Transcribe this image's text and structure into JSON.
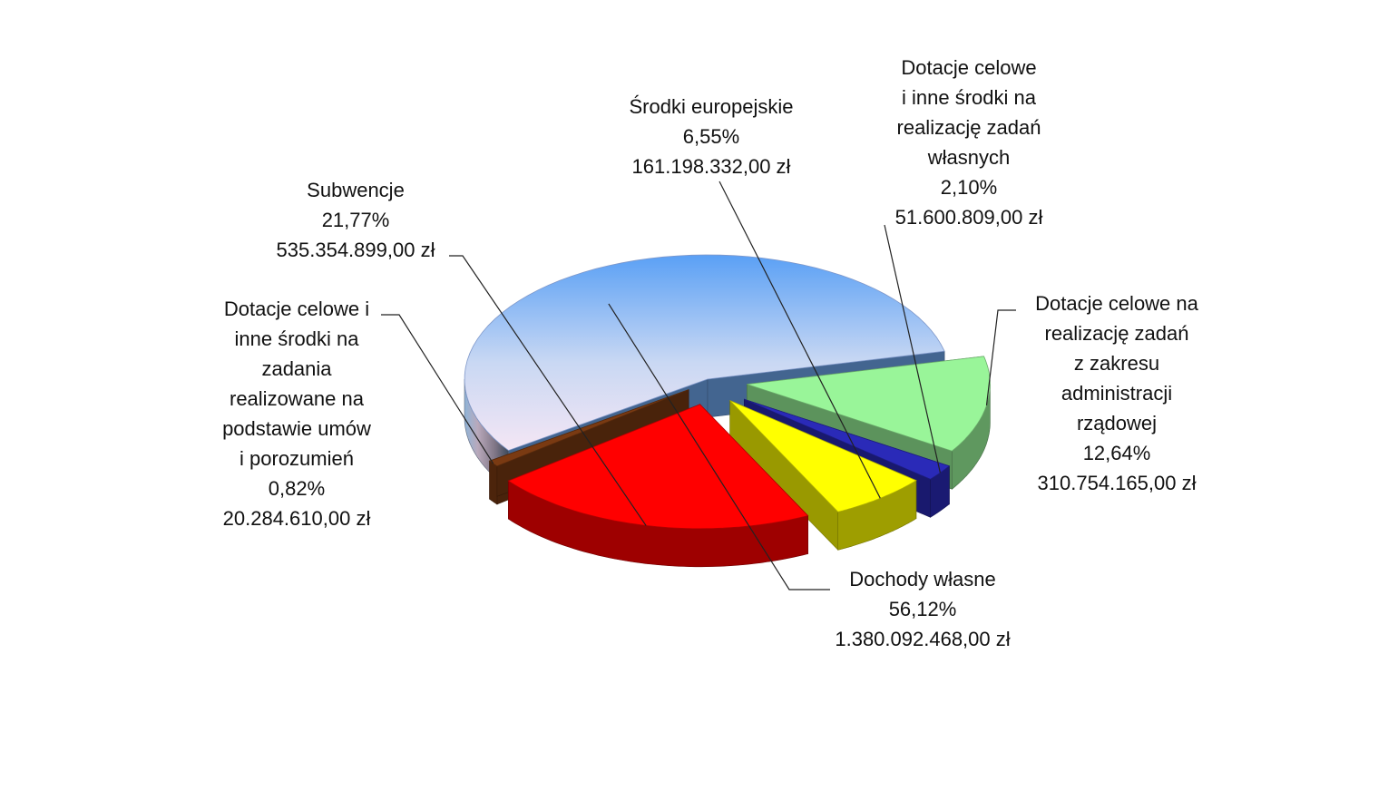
{
  "chart_data": {
    "type": "pie",
    "style": "3d-exploded",
    "title": "",
    "legend": "none",
    "series": [
      {
        "key": "dochody",
        "name_lines": [
          "Dochody własne"
        ],
        "percent_label": "56,12%",
        "amount_label": "1.380.092.468,00 zł",
        "percent": 56.12,
        "value": 1380092468.0,
        "color": "#6fa8f0"
      },
      {
        "key": "dotacje_umowy",
        "name_lines": [
          "Dotacje celowe i",
          "inne środki na",
          "zadania",
          "realizowane na",
          "podstawie umów",
          "i porozumień"
        ],
        "percent_label": "0,82%",
        "amount_label": "20.284.610,00 zł",
        "percent": 0.82,
        "value": 20284610.0,
        "color": "#7a3a12"
      },
      {
        "key": "subwencje",
        "name_lines": [
          "Subwencje"
        ],
        "percent_label": "21,77%",
        "amount_label": "535.354.899,00 zł",
        "percent": 21.77,
        "value": 535354899.0,
        "color": "#ff0000"
      },
      {
        "key": "srodki_eu",
        "name_lines": [
          "Środki europejskie"
        ],
        "percent_label": "6,55%",
        "amount_label": "161.198.332,00 zł",
        "percent": 6.55,
        "value": 161198332.0,
        "color": "#ffff00"
      },
      {
        "key": "dotacje_wlasne",
        "name_lines": [
          "Dotacje celowe",
          "i inne środki na",
          "realizację zadań",
          "własnych"
        ],
        "percent_label": "2,10%",
        "amount_label": "51.600.809,00 zł",
        "percent": 2.1,
        "value": 51600809.0,
        "color": "#2a2ab8"
      },
      {
        "key": "dotacje_adm",
        "name_lines": [
          "Dotacje celowe na",
          "realizację zadań",
          "z zakresu",
          "administracji",
          "rządowej"
        ],
        "percent_label": "12,64%",
        "amount_label": "310.754.165,00 zł",
        "percent": 12.64,
        "value": 310754165.0,
        "color": "#99f599"
      }
    ]
  }
}
